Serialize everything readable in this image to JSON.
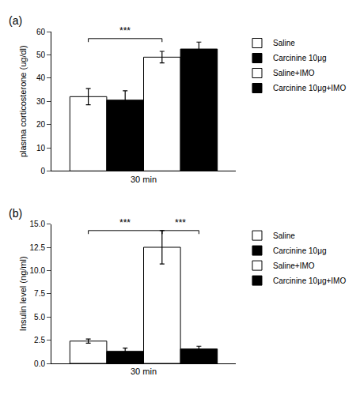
{
  "chart_data": [
    {
      "type": "bar",
      "title": "(a)",
      "categories": [
        "30 min"
      ],
      "ylabel": "plasma corticosterone (ug/dl)",
      "series": [
        {
          "name": "Saline",
          "color": "white",
          "values": [
            32.0
          ],
          "errors": [
            3.5
          ]
        },
        {
          "name": "Carcinine 10μg",
          "color": "black",
          "values": [
            30.5
          ],
          "errors": [
            4.0
          ]
        },
        {
          "name": "Saline+IMO",
          "color": "white",
          "values": [
            49.0
          ],
          "errors": [
            2.5
          ]
        },
        {
          "name": "Carcinine 10μg+IMO",
          "color": "black",
          "values": [
            52.5
          ],
          "errors": [
            3.0
          ]
        }
      ],
      "ylim": [
        0,
        60
      ],
      "yticks": [
        0,
        10,
        20,
        30,
        40,
        50,
        60
      ],
      "annotations": [
        {
          "text": "***",
          "between": [
            "Saline",
            "Saline+IMO"
          ],
          "y": 57.0
        }
      ],
      "grid": false,
      "legend": "right"
    },
    {
      "type": "bar",
      "title": "(b)",
      "categories": [
        "30 min"
      ],
      "ylabel": "Insulin level (ng/ml)",
      "series": [
        {
          "name": "Saline",
          "color": "white",
          "values": [
            2.4
          ],
          "errors": [
            0.22
          ]
        },
        {
          "name": "Carcinine 10μg",
          "color": "black",
          "values": [
            1.3
          ],
          "errors": [
            0.35
          ]
        },
        {
          "name": "Saline+IMO",
          "color": "white",
          "values": [
            12.5
          ],
          "errors": [
            1.8
          ]
        },
        {
          "name": "Carcinine 10μg+IMO",
          "color": "black",
          "values": [
            1.55
          ],
          "errors": [
            0.3
          ]
        }
      ],
      "ylim": [
        0,
        15.0
      ],
      "yticks": [
        {
          "value": 0,
          "label": "0.0"
        },
        2.5,
        {
          "value": 5,
          "label": "5.0"
        },
        7.5,
        {
          "value": 10,
          "label": "10.0"
        },
        12.5,
        {
          "value": 15,
          "label": "15.0"
        }
      ],
      "annotations": [
        {
          "text": "***",
          "between": [
            "Saline",
            "Saline+IMO"
          ],
          "y": 14.3
        },
        {
          "text": "***",
          "between": [
            "Saline+IMO",
            "Carcinine 10μg+IMO"
          ],
          "y": 14.3
        }
      ],
      "grid": false,
      "legend": "right"
    }
  ]
}
